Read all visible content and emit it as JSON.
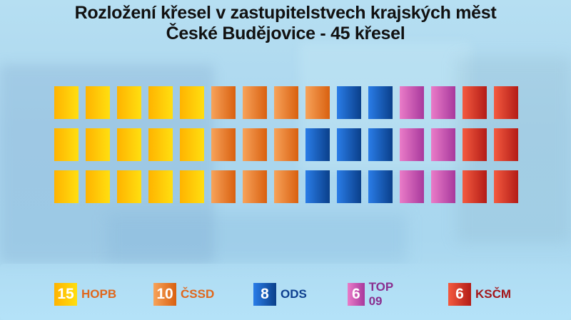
{
  "title": {
    "line1": "Rozložení křesel v zastupitelstvech krajských měst",
    "line2": "České Budějovice - 45 křesel"
  },
  "parties": [
    {
      "id": "hopb",
      "name": "HOPB",
      "seats": 15,
      "color_light": "#ffb300",
      "color_dark": "#ffdf10",
      "label_color": "#e0671c"
    },
    {
      "id": "cssd",
      "name": "ČSSD",
      "seats": 10,
      "color_light": "#f7a35a",
      "color_dark": "#d9600f",
      "label_color": "#e0671c"
    },
    {
      "id": "ods",
      "name": "ODS",
      "seats": 8,
      "color_light": "#2a7de8",
      "color_dark": "#0a3f8a",
      "label_color": "#0d3f8f"
    },
    {
      "id": "top09",
      "name": "TOP 09",
      "seats": 6,
      "color_light": "#ea7cc8",
      "color_dark": "#a8389c",
      "label_color": "#8a2f8f"
    },
    {
      "id": "kscm",
      "name": "KSČM",
      "seats": 6,
      "color_light": "#f45a3f",
      "color_dark": "#b31c17",
      "label_color": "#a3161a"
    }
  ],
  "legend": [
    {
      "count": "15",
      "label": "HOPB"
    },
    {
      "count": "10",
      "label": "ČSSD"
    },
    {
      "count": "8",
      "label": "ODS"
    },
    {
      "count": "6",
      "label": "TOP 09"
    },
    {
      "count": "6",
      "label": "KSČM"
    }
  ],
  "chart_data": {
    "type": "bar",
    "title": "Rozložení křesel v zastupitelstvech krajských měst — České Budějovice - 45 křesel",
    "categories": [
      "HOPB",
      "ČSSD",
      "ODS",
      "TOP 09",
      "KSČM"
    ],
    "values": [
      15,
      10,
      8,
      6,
      6
    ],
    "total": 45,
    "layout": "seat grid, 15 columns x 3 rows, filled column by column",
    "legend_position": "bottom",
    "grid": false
  }
}
